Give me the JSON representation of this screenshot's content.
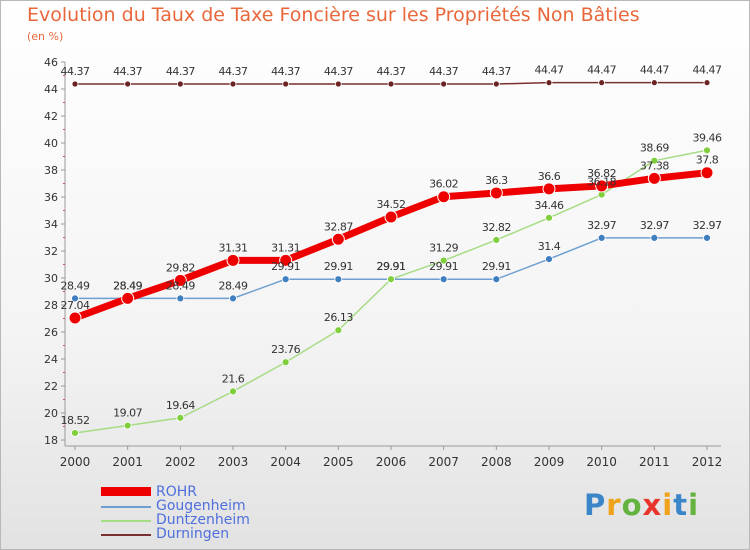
{
  "header": {
    "title": "Evolution du Taux de Taxe Foncière sur les Propriétés Non Bâties",
    "unit": "(en %)"
  },
  "logo": {
    "text": "Proxiti"
  },
  "colors": {
    "ROHR": "#ee0000",
    "Gougenheim": "#6d9fd0",
    "Duntzenheim": "#a6dc84",
    "Durningen": "#7a3030",
    "title": "#e8673b",
    "legend_text": "#4f6fdd"
  },
  "chart_data": {
    "type": "line",
    "title": "Evolution du Taux de Taxe Foncière sur les Propriétés Non Bâties",
    "ylabel": "(en %)",
    "xlabel": "",
    "ylim": [
      18,
      46
    ],
    "yticks": [
      18,
      20,
      22,
      24,
      26,
      28,
      30,
      32,
      34,
      36,
      38,
      40,
      42,
      44,
      46
    ],
    "categories": [
      "2000",
      "2001",
      "2002",
      "2003",
      "2004",
      "2005",
      "2006",
      "2007",
      "2008",
      "2009",
      "2010",
      "2011",
      "2012"
    ],
    "grid": false,
    "legend_position": "bottom-left",
    "series": [
      {
        "name": "ROHR",
        "values": [
          27.04,
          28.49,
          29.82,
          31.31,
          31.31,
          32.87,
          34.52,
          36.02,
          36.3,
          36.6,
          36.82,
          37.38,
          37.8
        ],
        "labels": [
          "27.04",
          "28.49",
          "29.82",
          "31.31",
          "31.31",
          "32.87",
          "34.52",
          "36.02",
          "36.3",
          "36.6",
          "36.82",
          "37.38",
          "37.8"
        ]
      },
      {
        "name": "Gougenheim",
        "values": [
          28.49,
          28.49,
          28.49,
          28.49,
          29.91,
          29.91,
          29.91,
          29.91,
          29.91,
          31.4,
          32.97,
          32.97,
          32.97
        ],
        "labels": [
          "28.49",
          "28.49",
          "28.49",
          "28.49",
          "29.91",
          "29.91",
          "29.91",
          "29.91",
          "29.91",
          "31.4",
          "32.97",
          "32.97",
          "32.97"
        ]
      },
      {
        "name": "Duntzenheim",
        "values": [
          18.52,
          19.07,
          19.64,
          21.6,
          23.76,
          26.13,
          29.91,
          31.29,
          32.82,
          34.46,
          36.18,
          38.69,
          39.46
        ],
        "labels": [
          "18.52",
          "19.07",
          "19.64",
          "21.6",
          "23.76",
          "26.13",
          "29.91",
          "31.29",
          "32.82",
          "34.46",
          "36.18",
          "38.69",
          "39.46"
        ]
      },
      {
        "name": "Durningen",
        "values": [
          44.37,
          44.37,
          44.37,
          44.37,
          44.37,
          44.37,
          44.37,
          44.37,
          44.37,
          44.47,
          44.47,
          44.47,
          44.47
        ],
        "labels": [
          "44.37",
          "44.37",
          "44.37",
          "44.37",
          "44.37",
          "44.37",
          "44.37",
          "44.37",
          "44.37",
          "44.47",
          "44.47",
          "44.47",
          "44.47"
        ]
      }
    ]
  }
}
